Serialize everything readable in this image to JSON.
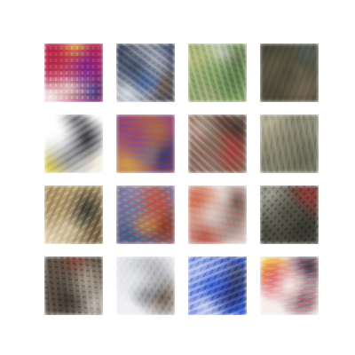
{
  "grid": {
    "rows": 4,
    "cols": 4
  },
  "tiles": [
    {
      "name": "tile-1",
      "colors": [
        "#b4324a",
        "#7a2a8a",
        "#e5d6c8",
        "#3d4a86",
        "#f2e24a",
        "#ffffff"
      ]
    },
    {
      "name": "tile-2",
      "colors": [
        "#3b4454",
        "#c7cad3",
        "#3a5fa4",
        "#eef0f2",
        "#6e5a4f",
        "#b9b2ab"
      ]
    },
    {
      "name": "tile-3",
      "colors": [
        "#7e9a6a",
        "#c9c28c",
        "#4f6a4a",
        "#d9dfe0",
        "#9aa17d",
        "#5f6c58"
      ]
    },
    {
      "name": "tile-4",
      "colors": [
        "#4d4a3e",
        "#6c6a52",
        "#8a7c66",
        "#3a3a32",
        "#d0c6b4",
        "#55605a"
      ]
    },
    {
      "name": "tile-5",
      "colors": [
        "#ffffff",
        "#2f2f33",
        "#8b8b90",
        "#f0eadc",
        "#4a4a4e",
        "#f4e04a"
      ]
    },
    {
      "name": "tile-6",
      "colors": [
        "#8a4a7e",
        "#b07a3a",
        "#6a7a9a",
        "#d7a84a",
        "#3a3a6a",
        "#a85a5a"
      ]
    },
    {
      "name": "tile-7",
      "colors": [
        "#7a6456",
        "#c6b9b0",
        "#a23a3a",
        "#4a3f3a",
        "#8f7f78",
        "#2f2a2a"
      ]
    },
    {
      "name": "tile-8",
      "colors": [
        "#7a7a6a",
        "#a39c88",
        "#5a5a4c",
        "#c9c0a8",
        "#6f6a58",
        "#8a8a7a"
      ]
    },
    {
      "name": "tile-9",
      "colors": [
        "#b09a74",
        "#3a3a34",
        "#d8ccb0",
        "#6e5a40",
        "#c4b08c",
        "#e6d9bd"
      ]
    },
    {
      "name": "tile-10",
      "colors": [
        "#6b7ea6",
        "#d0482a",
        "#e3a03a",
        "#3f5a8a",
        "#7a3a2a",
        "#9fb0cc"
      ]
    },
    {
      "name": "tile-11",
      "colors": [
        "#d8cfcc",
        "#c24a2a",
        "#7a6a66",
        "#f1ebea",
        "#a0382a",
        "#5a4e4c"
      ]
    },
    {
      "name": "tile-12",
      "colors": [
        "#4a4a40",
        "#8a8a80",
        "#2a2a26",
        "#c0beb4",
        "#6a6a5c",
        "#9a3a3a"
      ]
    },
    {
      "name": "tile-13",
      "colors": [
        "#5a5048",
        "#a8a094",
        "#3a322e",
        "#d2cdc6",
        "#8a3a2a",
        "#6e665c"
      ]
    },
    {
      "name": "tile-14",
      "colors": [
        "#e4e6ea",
        "#9a9aa0",
        "#4a4a50",
        "#f3f3f5",
        "#6a5a4a",
        "#bfc1c6"
      ]
    },
    {
      "name": "tile-15",
      "colors": [
        "#3a5ad0",
        "#e8ecf2",
        "#2a2a40",
        "#7a8ac8",
        "#f5f6f8",
        "#4a4a5a"
      ]
    },
    {
      "name": "tile-16",
      "colors": [
        "#f5f1ec",
        "#c8283a",
        "#4a2a3a",
        "#f2d84a",
        "#e0d6d0",
        "#2a2a3a"
      ]
    }
  ]
}
